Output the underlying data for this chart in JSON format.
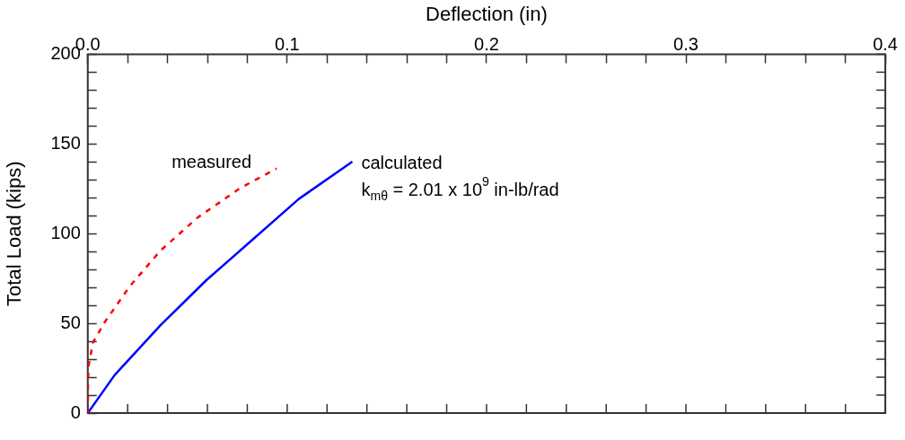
{
  "chart_data": {
    "type": "line",
    "xlabel": "Deflection (in)",
    "ylabel": "Total Load (kips)",
    "xlim": [
      0,
      0.4
    ],
    "xticks": [
      {
        "value": 0,
        "label": "0.0"
      },
      {
        "value": 0.02,
        "label": null
      },
      {
        "value": 0.04,
        "label": null
      },
      {
        "value": 0.06,
        "label": null
      },
      {
        "value": 0.08,
        "label": null
      },
      {
        "value": 0.1,
        "label": "0.1"
      },
      {
        "value": 0.12,
        "label": null
      },
      {
        "value": 0.14,
        "label": null
      },
      {
        "value": 0.16,
        "label": null
      },
      {
        "value": 0.18,
        "label": null
      },
      {
        "value": 0.2,
        "label": "0.2"
      },
      {
        "value": 0.22,
        "label": null
      },
      {
        "value": 0.24,
        "label": null
      },
      {
        "value": 0.26,
        "label": null
      },
      {
        "value": 0.28,
        "label": null
      },
      {
        "value": 0.3,
        "label": "0.3"
      },
      {
        "value": 0.32,
        "label": null
      },
      {
        "value": 0.34,
        "label": null
      },
      {
        "value": 0.36,
        "label": null
      },
      {
        "value": 0.38,
        "label": null
      },
      {
        "value": 0.4,
        "label": "0.4"
      }
    ],
    "ylim": [
      0,
      200
    ],
    "yticks": [
      0,
      {
        "value": 10,
        "label": null
      },
      {
        "value": 20,
        "label": null
      },
      {
        "value": 30,
        "label": null
      },
      {
        "value": 40,
        "label": null
      },
      50,
      {
        "value": 60,
        "label": null
      },
      {
        "value": 70,
        "label": null
      },
      {
        "value": 80,
        "label": null
      },
      {
        "value": 90,
        "label": null
      },
      100,
      {
        "value": 110,
        "label": null
      },
      {
        "value": 120,
        "label": null
      },
      {
        "value": 130,
        "label": null
      },
      {
        "value": 140,
        "label": null
      },
      150,
      {
        "value": 160,
        "label": null
      },
      {
        "value": 170,
        "label": null
      },
      {
        "value": 180,
        "label": null
      },
      {
        "value": 190,
        "label": null
      },
      200
    ],
    "grid": false,
    "legend": false,
    "marker": "none",
    "series": [
      {
        "name": "measured",
        "color": "#ff0000",
        "line_style": "dashed",
        "x": [
          0,
          0.0001,
          0.0003,
          0.0026,
          0.0085,
          0.0211,
          0.0365,
          0.055,
          0.0765,
          0.0947
        ],
        "values": [
          0,
          13.4,
          25.5,
          39.4,
          50.7,
          70.7,
          90.6,
          108.9,
          125.4,
          136.3
        ]
      },
      {
        "name": "calculated",
        "color": "#0000ff",
        "line_style": "solid",
        "x": [
          0,
          0.0135,
          0.0365,
          0.0596,
          0.0827,
          0.1058,
          0.1327
        ],
        "values": [
          0,
          21.2,
          49,
          74.2,
          96.7,
          119.3,
          140.1
        ]
      }
    ],
    "annotations": [
      "k$_{mθ}$ = 2.01 x 10$^{9}$ in-lb/rad"
    ]
  }
}
